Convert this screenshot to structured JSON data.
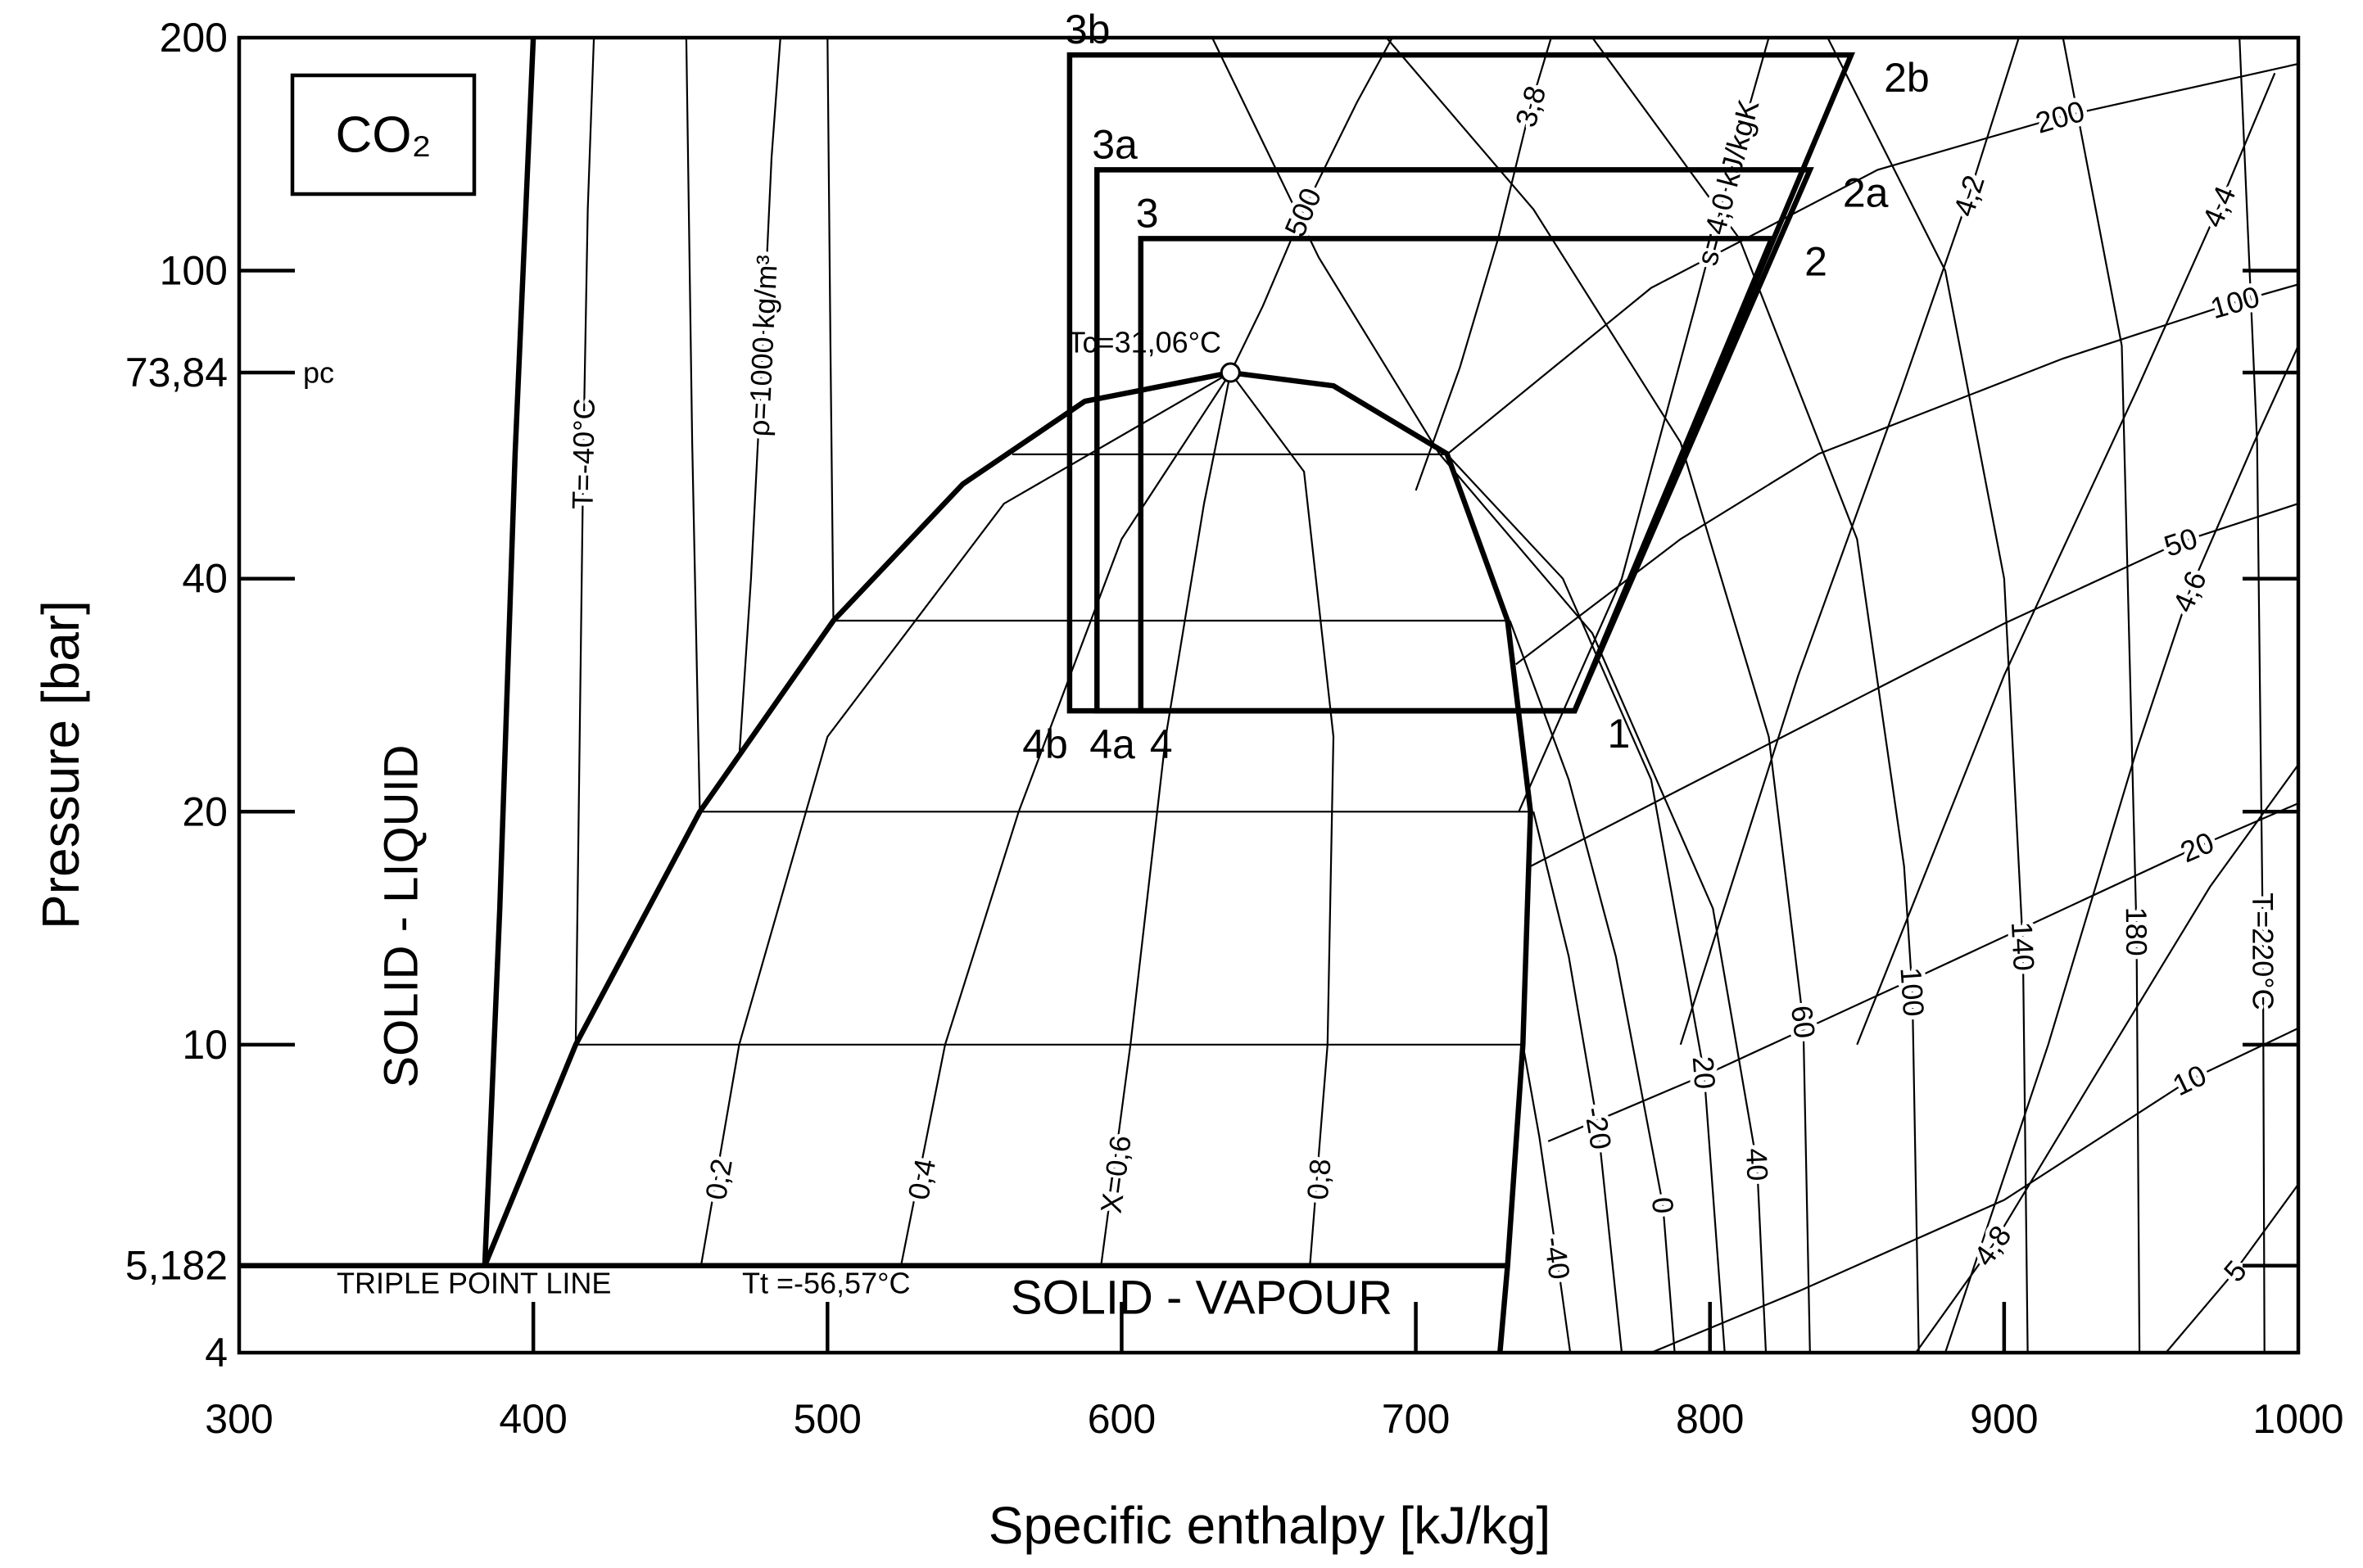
{
  "chart_data": {
    "type": "line",
    "title_box": "CO₂",
    "x_label": "Specific enthalpy [kJ/kg]",
    "y_label": "Pressure [bar]",
    "xlim": [
      300,
      1000
    ],
    "xticks": [
      300,
      400,
      500,
      600,
      700,
      800,
      900,
      1000
    ],
    "ylim": [
      4,
      200
    ],
    "yticks": [
      4,
      {
        "value": 5.182,
        "label": "5,182"
      },
      10,
      20,
      40,
      {
        "value": 73.84,
        "label": "73,84"
      },
      100,
      200
    ],
    "log_y": true,
    "grid": false,
    "critical_pressure_label": "pc",
    "critical_point": {
      "x": 637,
      "y": 73.84,
      "label": "Tc=31,06°C"
    },
    "triple_point": {
      "label": "TRIPLE POINT LINE",
      "temperature": "Tt =-56,57°C"
    },
    "regions": [
      "SOLID - LIQUID",
      "SOLID - VAPOUR"
    ],
    "boundaries": [
      {
        "x": [
          383.5,
          414.4,
          456.6,
          502,
          546,
          587.5,
          637,
          672,
          710.6,
          731.2,
          739,
          736.4,
          731.2,
          728.6
        ],
        "values": [
          5.182,
          10,
          20,
          35.3,
          53,
          67.8,
          73.84,
          71,
          58,
          35.3,
          20,
          10,
          5.182,
          4
        ]
      },
      {
        "x": [
          383.5,
          388.6,
          393.8,
          400
        ],
        "values": [
          5.182,
          15,
          58,
          200
        ]
      },
      {
        "x": [
          300,
          731.2
        ],
        "values": [
          5.182,
          5.182
        ]
      }
    ],
    "isolines": [
      {
        "label": "T=-40°C",
        "label_x": 417,
        "label_y": 58,
        "x": [
          420.6,
          418.5,
          417,
          414.4
        ],
        "values": [
          200,
          120,
          58,
          10
        ]
      },
      {
        "x": [
          414.4,
          736.4
        ],
        "values": [
          10,
          10
        ]
      },
      {
        "x": [
          456.6,
          739
        ],
        "values": [
          20,
          20
        ]
      },
      {
        "x": [
          502,
          731.2
        ],
        "values": [
          35.3,
          35.3
        ]
      },
      {
        "x": [
          562.8,
          710.6
        ],
        "values": [
          57.9,
          57.9
        ]
      },
      {
        "x": [
          452,
          454,
          456.6
        ],
        "values": [
          200,
          60,
          20
        ]
      },
      {
        "x": [
          500,
          501,
          502
        ],
        "values": [
          200,
          80,
          35.3
        ]
      },
      {
        "label": "ρ=1000 kg/m³",
        "label_x": 478,
        "label_y": 80,
        "x": [
          470,
          474,
          478,
          481,
          484
        ],
        "values": [
          23.5,
          40,
          80,
          140,
          200
        ]
      },
      {
        "label": "500",
        "label_x": 661.6,
        "label_y": 119,
        "x": [
          637,
          648,
          661.6,
          680,
          692
        ],
        "values": [
          73.84,
          90,
          119,
          165,
          200
        ]
      },
      {
        "label": "0,2",
        "label_x": 463,
        "label_y": 6.7,
        "x": [
          637,
          560,
          500,
          470,
          457
        ],
        "values": [
          73.84,
          50,
          25,
          10,
          5.182
        ]
      },
      {
        "label": "0,4",
        "label_x": 532,
        "label_y": 6.7,
        "x": [
          637,
          600,
          565,
          540,
          525
        ],
        "values": [
          73.84,
          45,
          20,
          10,
          5.182
        ]
      },
      {
        "label": "X=0,6",
        "label_x": 598,
        "label_y": 6.8,
        "x": [
          637,
          628,
          615,
          603,
          593
        ],
        "values": [
          73.84,
          50,
          25,
          10,
          5.182
        ]
      },
      {
        "label": "0,8",
        "label_x": 667,
        "label_y": 6.7,
        "x": [
          637,
          662,
          672,
          670,
          664
        ],
        "values": [
          73.84,
          55,
          25,
          10,
          5.182
        ]
      },
      {
        "label": "-40",
        "label_x": 748,
        "label_y": 5.3,
        "x": [
          736.4,
          742,
          748,
          752.5
        ],
        "values": [
          10,
          7.6,
          5.3,
          4
        ]
      },
      {
        "label": "-20",
        "label_x": 762,
        "label_y": 7.8,
        "x": [
          740,
          752,
          762,
          770
        ],
        "values": [
          20,
          13,
          7.8,
          4
        ]
      },
      {
        "label": "0",
        "label_x": 784,
        "label_y": 6.2,
        "x": [
          732,
          752,
          768,
          784,
          788
        ],
        "values": [
          35.3,
          22,
          13,
          6.2,
          4
        ]
      },
      {
        "label": "20",
        "label_x": 798,
        "label_y": 9.2,
        "x": [
          710.6,
          750,
          780,
          798,
          805
        ],
        "values": [
          57.9,
          40,
          22,
          9.2,
          4
        ]
      },
      {
        "label": "40",
        "label_x": 816,
        "label_y": 7,
        "x": [
          630.8,
          667,
          708,
          760,
          801,
          816,
          819
        ],
        "values": [
          200,
          104,
          58,
          34,
          15,
          7,
          4
        ]
      },
      {
        "label": "60",
        "label_x": 831.7,
        "label_y": 10.7,
        "x": [
          690,
          740,
          790,
          820,
          831.7,
          834
        ],
        "values": [
          200,
          120,
          60,
          25,
          10.7,
          4
        ]
      },
      {
        "label": "100",
        "label_x": 868.8,
        "label_y": 11.7,
        "x": [
          760,
          810,
          850,
          866,
          868.8,
          871
        ],
        "values": [
          200,
          110,
          45,
          17,
          11.7,
          4
        ]
      },
      {
        "label": "140",
        "label_x": 906.4,
        "label_y": 13.4,
        "x": [
          840,
          880,
          900,
          906.4,
          908
        ],
        "values": [
          200,
          100,
          40,
          13.4,
          4
        ]
      },
      {
        "label": "180",
        "label_x": 945,
        "label_y": 14,
        "x": [
          920,
          940,
          945,
          946
        ],
        "values": [
          200,
          80,
          14,
          4
        ]
      },
      {
        "label": "T=220°C",
        "label_x": 988,
        "label_y": 13.2,
        "x": [
          980,
          986,
          988,
          988.5
        ],
        "values": [
          200,
          60,
          13.2,
          4
        ]
      },
      {
        "label": "3,8",
        "label_x": 739,
        "label_y": 163,
        "x": [
          700,
          715,
          728,
          739,
          746
        ],
        "values": [
          52,
          75,
          110,
          163,
          200
        ]
      },
      {
        "label": "s=4,0 kJ/kgK",
        "label_x": 806,
        "label_y": 130,
        "x": [
          735,
          770,
          795,
          806,
          820
        ],
        "values": [
          20,
          40,
          90,
          130,
          200
        ]
      },
      {
        "label": "4,2",
        "label_x": 888,
        "label_y": 125,
        "x": [
          790,
          830,
          865,
          888,
          905
        ],
        "values": [
          10,
          30,
          70,
          125,
          200
        ]
      },
      {
        "label": "4,4",
        "label_x": 973,
        "label_y": 121,
        "x": [
          850,
          900,
          945,
          973,
          992
        ],
        "values": [
          10,
          30,
          70,
          121,
          180
        ]
      },
      {
        "label": "4,6",
        "label_x": 963,
        "label_y": 38.5,
        "x": [
          880,
          915,
          945,
          963,
          985,
          1000
        ],
        "values": [
          4,
          10,
          24,
          38.5,
          60,
          80
        ]
      },
      {
        "label": "4,8",
        "label_x": 896,
        "label_y": 5.5,
        "x": [
          870,
          896,
          930,
          970,
          1000
        ],
        "values": [
          4,
          5.5,
          9,
          16,
          23
        ]
      },
      {
        "label": "5",
        "label_x": 978.5,
        "label_y": 5.1,
        "x": [
          955,
          978.5,
          1000
        ],
        "values": [
          4,
          5.1,
          6.6
        ]
      },
      {
        "label": "200",
        "label_x": 919,
        "label_y": 158,
        "x": [
          710.6,
          780,
          857,
          919,
          1000
        ],
        "values": [
          57.9,
          95,
          135,
          158,
          185
        ]
      },
      {
        "label": "100",
        "label_x": 978.5,
        "label_y": 91,
        "x": [
          734,
          790,
          837,
          920,
          978.5,
          1000
        ],
        "values": [
          31,
          45,
          58,
          77,
          91,
          96
        ]
      },
      {
        "label": "50",
        "label_x": 960,
        "label_y": 44.6,
        "x": [
          739,
          811,
          900,
          960,
          1000
        ],
        "values": [
          17,
          23.5,
          35,
          44.6,
          50
        ]
      },
      {
        "label": "20",
        "label_x": 965.6,
        "label_y": 18,
        "x": [
          745,
          800,
          870,
          965.6,
          1000
        ],
        "values": [
          7.5,
          9.2,
          12.2,
          18,
          20.5
        ]
      },
      {
        "label": "10",
        "label_x": 963,
        "label_y": 9,
        "x": [
          780,
          830,
          900,
          963,
          1000
        ],
        "values": [
          4,
          4.8,
          6.3,
          9,
          10.5
        ]
      }
    ],
    "series": [
      {
        "color": "#000000",
        "x": [
          754,
          821,
          606.5,
          606.5
        ],
        "values": [
          27,
          110,
          110,
          27
        ],
        "point_labels": [
          "1",
          "2",
          "3",
          "4"
        ]
      },
      {
        "color": "#000000",
        "x": [
          754,
          834,
          591.6,
          591.6
        ],
        "values": [
          27,
          135,
          135,
          27
        ],
        "point_labels": [
          null,
          "2a",
          "3a",
          "4a"
        ]
      },
      {
        "color": "#000000",
        "x": [
          754,
          848,
          582.3,
          582.3
        ],
        "values": [
          27,
          190,
          190,
          27
        ],
        "point_labels": [
          null,
          "2b",
          "3b",
          "4b"
        ]
      }
    ]
  }
}
